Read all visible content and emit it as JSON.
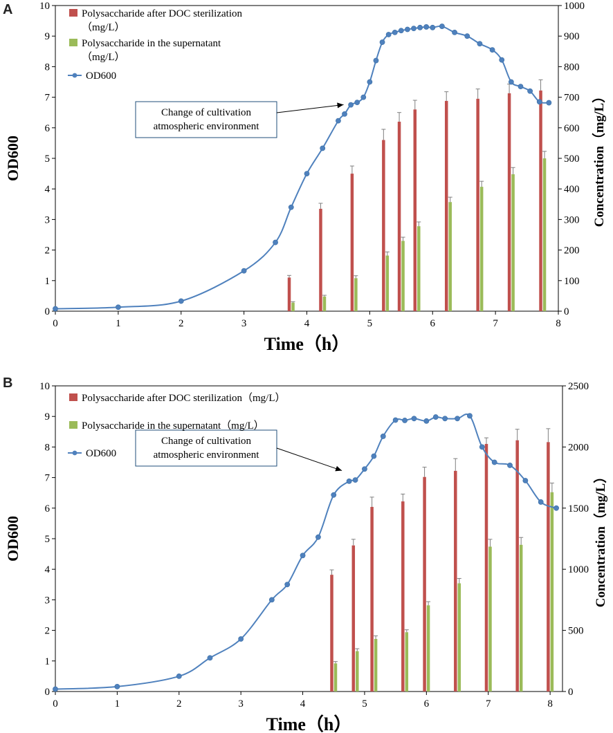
{
  "chart_data": [
    {
      "panel": "A",
      "type": "bar+line",
      "xlabel": "Time（h）",
      "ylabel_left": "OD600",
      "ylabel_right": "Concentration（mg/L）",
      "x_ticks": [
        0,
        1,
        2,
        3,
        4,
        5,
        6,
        7,
        8
      ],
      "xlim": [
        0,
        8
      ],
      "ylim_left": [
        0,
        10
      ],
      "ylim_right": [
        0,
        1000
      ],
      "y_ticks_left": [
        0,
        1,
        2,
        3,
        4,
        5,
        6,
        7,
        8,
        9,
        10
      ],
      "y_ticks_right": [
        0,
        100,
        200,
        300,
        400,
        500,
        600,
        700,
        800,
        900,
        1000
      ],
      "legend": [
        {
          "label": "Polysaccharide after DOC sterilization",
          "label_cont": "（mg/L）",
          "color": "#c0504d",
          "kind": "bar"
        },
        {
          "label": "Polysaccharide in the supernatant",
          "label_cont": "（mg/L）",
          "color": "#9bbb59",
          "kind": "bar"
        },
        {
          "label": "OD600",
          "label_cont": "",
          "color": "#4f81bd",
          "kind": "line"
        }
      ],
      "annotation": {
        "lines": [
          "Change of cultivation",
          "atmospheric environment"
        ],
        "x": 4.65,
        "y": 6.78
      },
      "od600": {
        "x": [
          0,
          1,
          2,
          3,
          3.5,
          3.75,
          4.0,
          4.25,
          4.5,
          4.6,
          4.7,
          4.8,
          4.9,
          5.0,
          5.1,
          5.2,
          5.3,
          5.4,
          5.5,
          5.6,
          5.7,
          5.8,
          5.9,
          6.0,
          6.15,
          6.35,
          6.55,
          6.75,
          6.95,
          7.1,
          7.25,
          7.4,
          7.55,
          7.7,
          7.85
        ],
        "y": [
          0.08,
          0.13,
          0.33,
          1.32,
          2.25,
          3.4,
          4.5,
          5.33,
          6.23,
          6.45,
          6.75,
          6.83,
          7.0,
          7.5,
          8.2,
          8.8,
          9.05,
          9.12,
          9.18,
          9.22,
          9.25,
          9.28,
          9.3,
          9.28,
          9.32,
          9.12,
          9.0,
          8.75,
          8.55,
          8.22,
          7.5,
          7.35,
          7.2,
          6.85,
          6.82
        ]
      },
      "bars": {
        "x": [
          3.75,
          4.25,
          4.75,
          5.25,
          5.5,
          5.75,
          6.25,
          6.75,
          7.25,
          7.75
        ],
        "doc": [
          110,
          335,
          450,
          560,
          620,
          660,
          688,
          695,
          713,
          722
        ],
        "doc_err": [
          7,
          18,
          25,
          35,
          30,
          30,
          30,
          32,
          30,
          35
        ],
        "supernatant": [
          28,
          48,
          108,
          182,
          230,
          278,
          357,
          407,
          448,
          500
        ],
        "supernatant_err": [
          3,
          4,
          8,
          12,
          12,
          14,
          16,
          18,
          22,
          23
        ]
      }
    },
    {
      "panel": "B",
      "type": "bar+line",
      "xlabel": "Time（h）",
      "ylabel_left": "OD600",
      "ylabel_right": "Concentration（mg/L）",
      "x_ticks": [
        0,
        1,
        2,
        3,
        4,
        5,
        6,
        7,
        8
      ],
      "xlim": [
        0,
        8.2
      ],
      "ylim_left": [
        0,
        10
      ],
      "ylim_right": [
        0,
        2500
      ],
      "y_ticks_left": [
        0,
        1,
        2,
        3,
        4,
        5,
        6,
        7,
        8,
        9,
        10
      ],
      "y_ticks_right": [
        0,
        500,
        1000,
        1500,
        2000,
        2500
      ],
      "legend": [
        {
          "label": "Polysaccharide after DOC sterilization（mg/L）",
          "label_cont": "",
          "color": "#c0504d",
          "kind": "bar"
        },
        {
          "label": "Polysaccharide in the supernatant（mg/L）",
          "label_cont": "",
          "color": "#9bbb59",
          "kind": "bar"
        },
        {
          "label": "OD600",
          "label_cont": "",
          "color": "#4f81bd",
          "kind": "line"
        }
      ],
      "annotation": {
        "lines": [
          "Change of cultivation",
          "atmospheric environment"
        ],
        "x": 4.7,
        "y": 7.25
      },
      "od600": {
        "x": [
          0,
          1,
          2,
          2.5,
          3,
          3.5,
          3.75,
          4.0,
          4.25,
          4.5,
          4.75,
          4.85,
          5.0,
          5.15,
          5.3,
          5.5,
          5.65,
          5.8,
          6.0,
          6.15,
          6.3,
          6.5,
          6.7,
          6.9,
          7.1,
          7.35,
          7.6,
          7.85,
          8.1
        ],
        "y": [
          0.08,
          0.16,
          0.5,
          1.1,
          1.72,
          3.0,
          3.5,
          4.45,
          5.05,
          6.43,
          6.88,
          6.92,
          7.28,
          7.7,
          8.35,
          8.88,
          8.87,
          8.93,
          8.85,
          8.98,
          8.93,
          8.93,
          9.02,
          8.0,
          7.5,
          7.4,
          6.9,
          6.2,
          6.0
        ]
      },
      "bars": {
        "x": [
          4.5,
          4.85,
          5.15,
          5.65,
          6.0,
          6.5,
          7.0,
          7.5,
          8.0
        ],
        "doc": [
          955,
          1195,
          1510,
          1555,
          1755,
          1805,
          2025,
          2055,
          2040
        ],
        "doc_err": [
          40,
          50,
          80,
          60,
          80,
          100,
          50,
          90,
          110
        ],
        "supernatant": [
          230,
          330,
          430,
          485,
          705,
          885,
          1185,
          1200,
          1630
        ],
        "supernatant_err": [
          15,
          20,
          25,
          20,
          30,
          40,
          60,
          60,
          75
        ]
      }
    }
  ]
}
